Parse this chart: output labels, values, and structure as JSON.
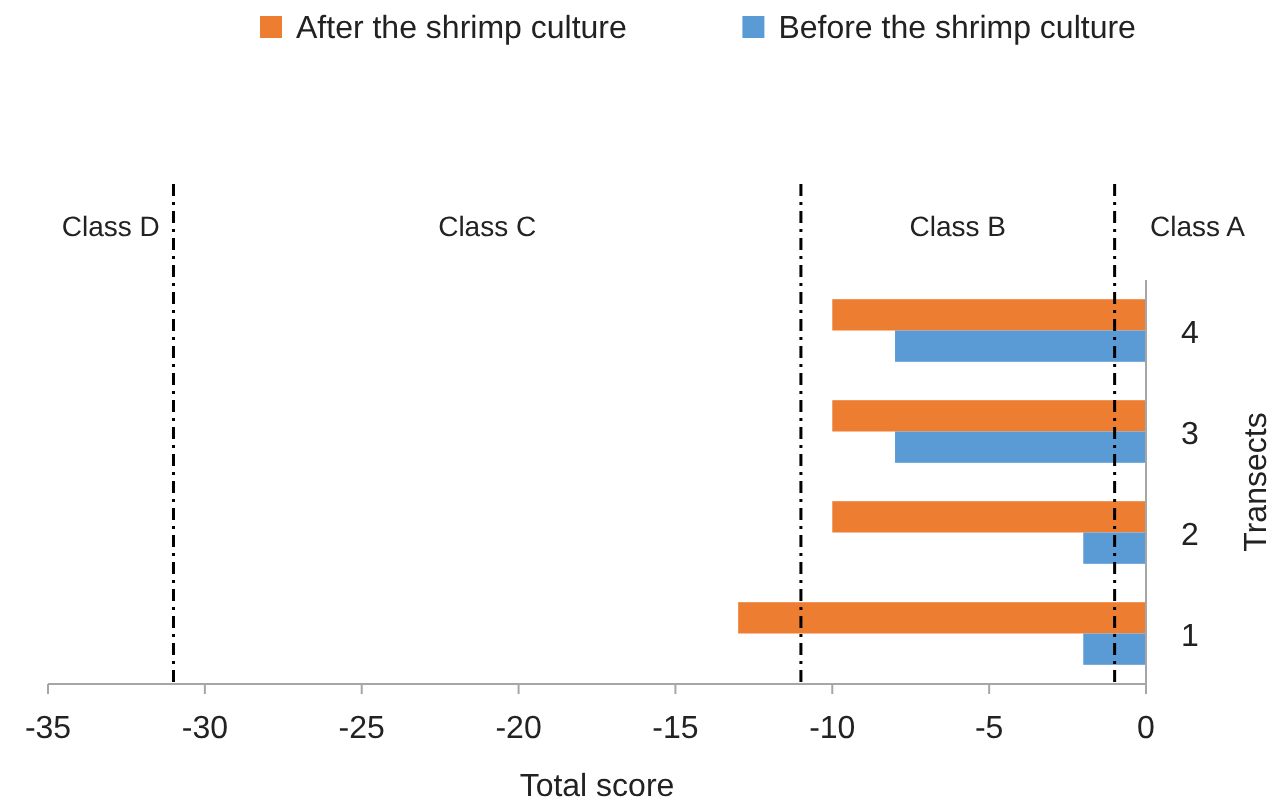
{
  "chart_data": {
    "type": "bar",
    "orientation": "horizontal",
    "xlabel": "Total score",
    "ylabel": "Transects",
    "categories": [
      "4",
      "3",
      "2",
      "1"
    ],
    "series": [
      {
        "name": "After the shrimp culture",
        "color": "#ed7d31",
        "values": [
          -10,
          -10,
          -10,
          -13
        ]
      },
      {
        "name": "Before the shrimp culture",
        "color": "#5b9bd5",
        "values": [
          -8,
          -8,
          -2,
          -2
        ]
      }
    ],
    "xlim": [
      -35,
      0
    ],
    "xticks": [
      -35,
      -30,
      -25,
      -20,
      -15,
      -10,
      -5,
      0
    ],
    "ref_lines": [
      {
        "axis": "x",
        "value": -31,
        "color": "#000000",
        "line_style": "dashdot"
      },
      {
        "axis": "x",
        "value": -11,
        "color": "#000000",
        "line_style": "dashdot"
      },
      {
        "axis": "x",
        "value": -1,
        "color": "#000000",
        "line_style": "dashdot"
      }
    ],
    "annotations": [
      "Class D",
      "Class C",
      "Class B",
      "Class A"
    ],
    "legend": "top",
    "grid": false
  }
}
